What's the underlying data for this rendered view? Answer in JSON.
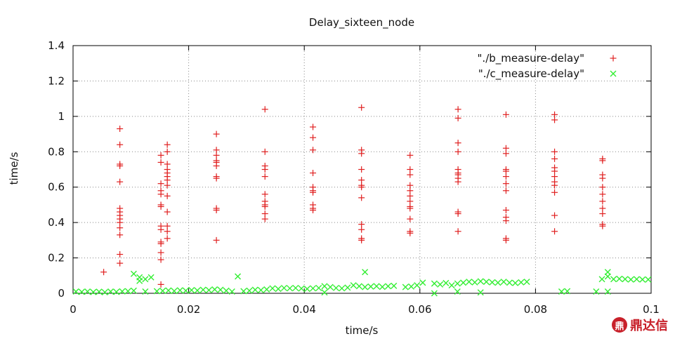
{
  "chart_data": {
    "type": "scatter",
    "title": "Delay_sixteen_node",
    "xlabel": "time/s",
    "ylabel": "time/s",
    "xlim": [
      0,
      0.1
    ],
    "ylim": [
      0,
      1.4
    ],
    "x_ticks": [
      0,
      0.02,
      0.04,
      0.06,
      0.08,
      0.1
    ],
    "x_tick_labels": [
      "0",
      "0.02",
      "0.04",
      "0.06",
      "0.08",
      "0.1"
    ],
    "y_ticks": [
      0,
      0.2,
      0.4,
      0.6,
      0.8,
      1,
      1.2,
      1.4
    ],
    "y_tick_labels": [
      "0",
      "0.2",
      "0.4",
      "0.6",
      "0.8",
      "1",
      "1.2",
      "1.4"
    ],
    "grid": true,
    "legend_position": "top-right",
    "series": [
      {
        "name": "\"./b_measure-delay\"",
        "marker": "plus",
        "color": "#e02020",
        "points": [
          [
            0.0053,
            0.12
          ],
          [
            0.0081,
            0.93
          ],
          [
            0.0081,
            0.84
          ],
          [
            0.0081,
            0.73
          ],
          [
            0.0081,
            0.72
          ],
          [
            0.0081,
            0.63
          ],
          [
            0.0081,
            0.48
          ],
          [
            0.0081,
            0.46
          ],
          [
            0.0081,
            0.44
          ],
          [
            0.0081,
            0.42
          ],
          [
            0.0081,
            0.4
          ],
          [
            0.0081,
            0.37
          ],
          [
            0.0081,
            0.33
          ],
          [
            0.0081,
            0.22
          ],
          [
            0.0081,
            0.17
          ],
          [
            0.0152,
            0.78
          ],
          [
            0.0152,
            0.74
          ],
          [
            0.0152,
            0.62
          ],
          [
            0.0152,
            0.58
          ],
          [
            0.0152,
            0.56
          ],
          [
            0.0152,
            0.5
          ],
          [
            0.0152,
            0.49
          ],
          [
            0.0152,
            0.38
          ],
          [
            0.0152,
            0.36
          ],
          [
            0.0152,
            0.29
          ],
          [
            0.0152,
            0.28
          ],
          [
            0.0152,
            0.23
          ],
          [
            0.0152,
            0.19
          ],
          [
            0.0152,
            0.05
          ],
          [
            0.0163,
            0.84
          ],
          [
            0.0163,
            0.8
          ],
          [
            0.0163,
            0.73
          ],
          [
            0.0163,
            0.7
          ],
          [
            0.0163,
            0.68
          ],
          [
            0.0163,
            0.66
          ],
          [
            0.0163,
            0.64
          ],
          [
            0.0163,
            0.61
          ],
          [
            0.0163,
            0.55
          ],
          [
            0.0163,
            0.46
          ],
          [
            0.0163,
            0.38
          ],
          [
            0.0163,
            0.35
          ],
          [
            0.0163,
            0.31
          ],
          [
            0.0248,
            0.9
          ],
          [
            0.0248,
            0.81
          ],
          [
            0.0248,
            0.78
          ],
          [
            0.0248,
            0.75
          ],
          [
            0.0248,
            0.74
          ],
          [
            0.0248,
            0.72
          ],
          [
            0.0248,
            0.66
          ],
          [
            0.0248,
            0.65
          ],
          [
            0.0248,
            0.48
          ],
          [
            0.0248,
            0.47
          ],
          [
            0.0248,
            0.3
          ],
          [
            0.0332,
            1.04
          ],
          [
            0.0332,
            0.8
          ],
          [
            0.0332,
            0.72
          ],
          [
            0.0332,
            0.7
          ],
          [
            0.0332,
            0.66
          ],
          [
            0.0332,
            0.56
          ],
          [
            0.0332,
            0.52
          ],
          [
            0.0332,
            0.5
          ],
          [
            0.0332,
            0.49
          ],
          [
            0.0332,
            0.45
          ],
          [
            0.0332,
            0.42
          ],
          [
            0.0415,
            0.94
          ],
          [
            0.0415,
            0.88
          ],
          [
            0.0415,
            0.81
          ],
          [
            0.0415,
            0.68
          ],
          [
            0.0415,
            0.6
          ],
          [
            0.0415,
            0.58
          ],
          [
            0.0415,
            0.57
          ],
          [
            0.0415,
            0.5
          ],
          [
            0.0415,
            0.48
          ],
          [
            0.0415,
            0.47
          ],
          [
            0.0499,
            1.05
          ],
          [
            0.0499,
            0.81
          ],
          [
            0.0499,
            0.79
          ],
          [
            0.0499,
            0.7
          ],
          [
            0.0499,
            0.64
          ],
          [
            0.0499,
            0.61
          ],
          [
            0.0499,
            0.6
          ],
          [
            0.0499,
            0.54
          ],
          [
            0.0499,
            0.39
          ],
          [
            0.0499,
            0.36
          ],
          [
            0.0499,
            0.31
          ],
          [
            0.0499,
            0.3
          ],
          [
            0.0583,
            0.78
          ],
          [
            0.0583,
            0.7
          ],
          [
            0.0583,
            0.67
          ],
          [
            0.0583,
            0.61
          ],
          [
            0.0583,
            0.58
          ],
          [
            0.0583,
            0.55
          ],
          [
            0.0583,
            0.52
          ],
          [
            0.0583,
            0.49
          ],
          [
            0.0583,
            0.48
          ],
          [
            0.0583,
            0.42
          ],
          [
            0.0583,
            0.35
          ],
          [
            0.0583,
            0.34
          ],
          [
            0.0666,
            1.04
          ],
          [
            0.0666,
            0.99
          ],
          [
            0.0666,
            0.85
          ],
          [
            0.0666,
            0.8
          ],
          [
            0.0666,
            0.7
          ],
          [
            0.0666,
            0.68
          ],
          [
            0.0666,
            0.67
          ],
          [
            0.0666,
            0.65
          ],
          [
            0.0666,
            0.63
          ],
          [
            0.0666,
            0.46
          ],
          [
            0.0666,
            0.45
          ],
          [
            0.0666,
            0.35
          ],
          [
            0.0749,
            1.01
          ],
          [
            0.0749,
            0.82
          ],
          [
            0.0749,
            0.79
          ],
          [
            0.0749,
            0.7
          ],
          [
            0.0749,
            0.69
          ],
          [
            0.0749,
            0.66
          ],
          [
            0.0749,
            0.62
          ],
          [
            0.0749,
            0.58
          ],
          [
            0.0749,
            0.47
          ],
          [
            0.0749,
            0.43
          ],
          [
            0.0749,
            0.41
          ],
          [
            0.0749,
            0.31
          ],
          [
            0.0749,
            0.3
          ],
          [
            0.0833,
            1.01
          ],
          [
            0.0833,
            0.98
          ],
          [
            0.0833,
            0.8
          ],
          [
            0.0833,
            0.76
          ],
          [
            0.0833,
            0.71
          ],
          [
            0.0833,
            0.69
          ],
          [
            0.0833,
            0.66
          ],
          [
            0.0833,
            0.63
          ],
          [
            0.0833,
            0.61
          ],
          [
            0.0833,
            0.57
          ],
          [
            0.0833,
            0.44
          ],
          [
            0.0833,
            0.35
          ],
          [
            0.0916,
            0.76
          ],
          [
            0.0916,
            0.75
          ],
          [
            0.0916,
            0.67
          ],
          [
            0.0916,
            0.65
          ],
          [
            0.0916,
            0.6
          ],
          [
            0.0916,
            0.56
          ],
          [
            0.0916,
            0.52
          ],
          [
            0.0916,
            0.48
          ],
          [
            0.0916,
            0.45
          ],
          [
            0.0916,
            0.39
          ],
          [
            0.0916,
            0.38
          ]
        ]
      },
      {
        "name": "\"./c_measure-delay\"",
        "marker": "cross",
        "color": "#33ee33",
        "points": [
          [
            0.0005,
            0.01
          ],
          [
            0.0015,
            0.008
          ],
          [
            0.0025,
            0.01
          ],
          [
            0.0035,
            0.007
          ],
          [
            0.0045,
            0.009
          ],
          [
            0.0055,
            0.006
          ],
          [
            0.0065,
            0.01
          ],
          [
            0.0075,
            0.008
          ],
          [
            0.0085,
            0.011
          ],
          [
            0.0095,
            0.012
          ],
          [
            0.0105,
            0.015
          ],
          [
            0.0105,
            0.11
          ],
          [
            0.0115,
            0.09
          ],
          [
            0.0115,
            0.07
          ],
          [
            0.0125,
            0.08
          ],
          [
            0.0125,
            0.01
          ],
          [
            0.0135,
            0.09
          ],
          [
            0.0145,
            0.012
          ],
          [
            0.0155,
            0.014
          ],
          [
            0.0165,
            0.016
          ],
          [
            0.0175,
            0.013
          ],
          [
            0.0185,
            0.017
          ],
          [
            0.0195,
            0.015
          ],
          [
            0.0205,
            0.018
          ],
          [
            0.0215,
            0.016
          ],
          [
            0.0225,
            0.02
          ],
          [
            0.0235,
            0.018
          ],
          [
            0.0245,
            0.022
          ],
          [
            0.0255,
            0.02
          ],
          [
            0.0265,
            0.015
          ],
          [
            0.0275,
            0.01
          ],
          [
            0.0285,
            0.095
          ],
          [
            0.0295,
            0.012
          ],
          [
            0.0305,
            0.015
          ],
          [
            0.0315,
            0.02
          ],
          [
            0.0325,
            0.018
          ],
          [
            0.0335,
            0.022
          ],
          [
            0.0345,
            0.028
          ],
          [
            0.0355,
            0.025
          ],
          [
            0.0365,
            0.03
          ],
          [
            0.0375,
            0.028
          ],
          [
            0.0385,
            0.03
          ],
          [
            0.0395,
            0.027
          ],
          [
            0.0405,
            0.025
          ],
          [
            0.0415,
            0.028
          ],
          [
            0.0425,
            0.03
          ],
          [
            0.0435,
            0.04
          ],
          [
            0.0435,
            0.005
          ],
          [
            0.0445,
            0.035
          ],
          [
            0.0455,
            0.03
          ],
          [
            0.0465,
            0.028
          ],
          [
            0.0475,
            0.032
          ],
          [
            0.0485,
            0.045
          ],
          [
            0.0495,
            0.04
          ],
          [
            0.0505,
            0.12
          ],
          [
            0.0505,
            0.035
          ],
          [
            0.0515,
            0.038
          ],
          [
            0.0525,
            0.04
          ],
          [
            0.0535,
            0.036
          ],
          [
            0.0545,
            0.04
          ],
          [
            0.0555,
            0.042
          ],
          [
            0.0575,
            0.035
          ],
          [
            0.0585,
            0.038
          ],
          [
            0.0595,
            0.045
          ],
          [
            0.0605,
            0.06
          ],
          [
            0.0625,
            0.055
          ],
          [
            0.0625,
            0.0
          ],
          [
            0.0635,
            0.05
          ],
          [
            0.0645,
            0.058
          ],
          [
            0.0655,
            0.045
          ],
          [
            0.0665,
            0.055
          ],
          [
            0.0665,
            0.01
          ],
          [
            0.0675,
            0.06
          ],
          [
            0.0685,
            0.065
          ],
          [
            0.0695,
            0.062
          ],
          [
            0.0705,
            0.068
          ],
          [
            0.0705,
            0.005
          ],
          [
            0.0715,
            0.065
          ],
          [
            0.0725,
            0.062
          ],
          [
            0.0735,
            0.06
          ],
          [
            0.0745,
            0.065
          ],
          [
            0.0755,
            0.06
          ],
          [
            0.0765,
            0.058
          ],
          [
            0.0775,
            0.062
          ],
          [
            0.0785,
            0.065
          ],
          [
            0.0845,
            0.01
          ],
          [
            0.0855,
            0.012
          ],
          [
            0.0905,
            0.01
          ],
          [
            0.0915,
            0.08
          ],
          [
            0.0925,
            0.12
          ],
          [
            0.0925,
            0.095
          ],
          [
            0.0925,
            0.01
          ],
          [
            0.0935,
            0.08
          ],
          [
            0.0945,
            0.082
          ],
          [
            0.0955,
            0.08
          ],
          [
            0.0965,
            0.078
          ],
          [
            0.0975,
            0.08
          ],
          [
            0.0985,
            0.078
          ],
          [
            0.0995,
            0.078
          ]
        ]
      }
    ]
  },
  "watermark": {
    "icon_glyph": "鼎",
    "text": "鼎达信"
  }
}
